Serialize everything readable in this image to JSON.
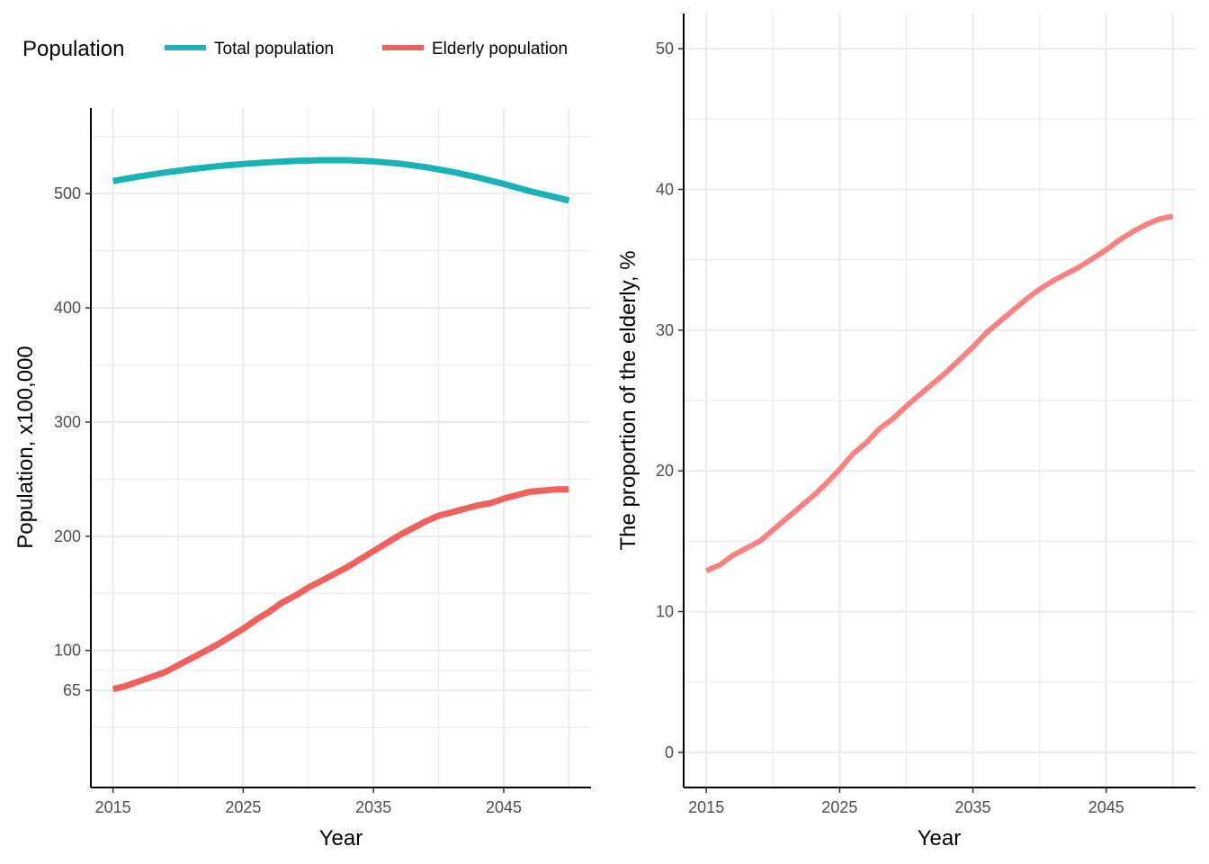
{
  "chart_data": [
    {
      "type": "line",
      "title": "",
      "xlabel": "Year",
      "ylabel": "Population, x100,000",
      "xlim": [
        2013.3,
        2051.7
      ],
      "ylim": [
        -20,
        575
      ],
      "xticks": [
        2015,
        2025,
        2035,
        2045
      ],
      "yticks": [
        65,
        100,
        200,
        300,
        400,
        500
      ],
      "grid": true,
      "legend": {
        "title": "Population",
        "position": "top-left",
        "items": [
          {
            "label": "Total population",
            "color": "#19B2B5"
          },
          {
            "label": "Elderly population",
            "color": "#F0605D"
          }
        ]
      },
      "series": [
        {
          "name": "Total population",
          "color": "#19B2B5",
          "x": [
            2015,
            2017,
            2019,
            2021,
            2023,
            2025,
            2027,
            2029,
            2031,
            2033,
            2035,
            2037,
            2039,
            2041,
            2043,
            2045,
            2047,
            2049,
            2050
          ],
          "y": [
            511,
            515,
            518.5,
            521.5,
            524,
            526,
            527.5,
            528.7,
            529.3,
            529.3,
            528.3,
            526.3,
            523.2,
            519.2,
            514.2,
            508.5,
            502.2,
            496.8,
            494
          ]
        },
        {
          "name": "Elderly population",
          "color": "#F0605D",
          "x": [
            2015,
            2016,
            2017,
            2018,
            2019,
            2020,
            2021,
            2022,
            2023,
            2024,
            2025,
            2026,
            2027,
            2028,
            2029,
            2030,
            2031,
            2032,
            2033,
            2034,
            2035,
            2036,
            2037,
            2038,
            2039,
            2040,
            2041,
            2042,
            2043,
            2044,
            2045,
            2046,
            2047,
            2048,
            2049,
            2050
          ],
          "y": [
            66,
            69,
            73,
            77,
            81,
            87,
            93,
            99,
            105,
            112,
            119,
            127,
            134,
            142,
            148,
            155,
            161,
            167,
            173,
            180,
            187,
            194,
            201,
            207,
            213,
            218,
            221,
            224,
            227,
            229,
            233,
            236,
            239,
            240,
            241,
            241
          ]
        }
      ]
    },
    {
      "type": "line",
      "title": "",
      "xlabel": "Year",
      "ylabel": "The proportion of the elderly, %",
      "xlim": [
        2013.3,
        2051.7
      ],
      "ylim": [
        -2.5,
        52.5
      ],
      "xticks": [
        2015,
        2025,
        2035,
        2045
      ],
      "yticks": [
        0,
        10,
        20,
        30,
        40,
        50
      ],
      "grid": true,
      "series": [
        {
          "name": "",
          "color": "#F88281",
          "x": [
            2015,
            2016,
            2017,
            2018,
            2019,
            2020,
            2021,
            2022,
            2023,
            2024,
            2025,
            2026,
            2027,
            2028,
            2029,
            2030,
            2031,
            2032,
            2033,
            2034,
            2035,
            2036,
            2037,
            2038,
            2039,
            2040,
            2041,
            2042,
            2043,
            2044,
            2045,
            2046,
            2047,
            2048,
            2049,
            2050
          ],
          "y": [
            12.9,
            13.3,
            14.0,
            14.5,
            15.0,
            15.8,
            16.6,
            17.4,
            18.2,
            19.1,
            20.1,
            21.2,
            22.0,
            23.0,
            23.7,
            24.6,
            25.4,
            26.2,
            27.0,
            27.9,
            28.8,
            29.8,
            30.6,
            31.4,
            32.2,
            32.9,
            33.5,
            34.0,
            34.5,
            35.1,
            35.7,
            36.4,
            37.0,
            37.5,
            37.9,
            38.1
          ]
        }
      ]
    }
  ]
}
